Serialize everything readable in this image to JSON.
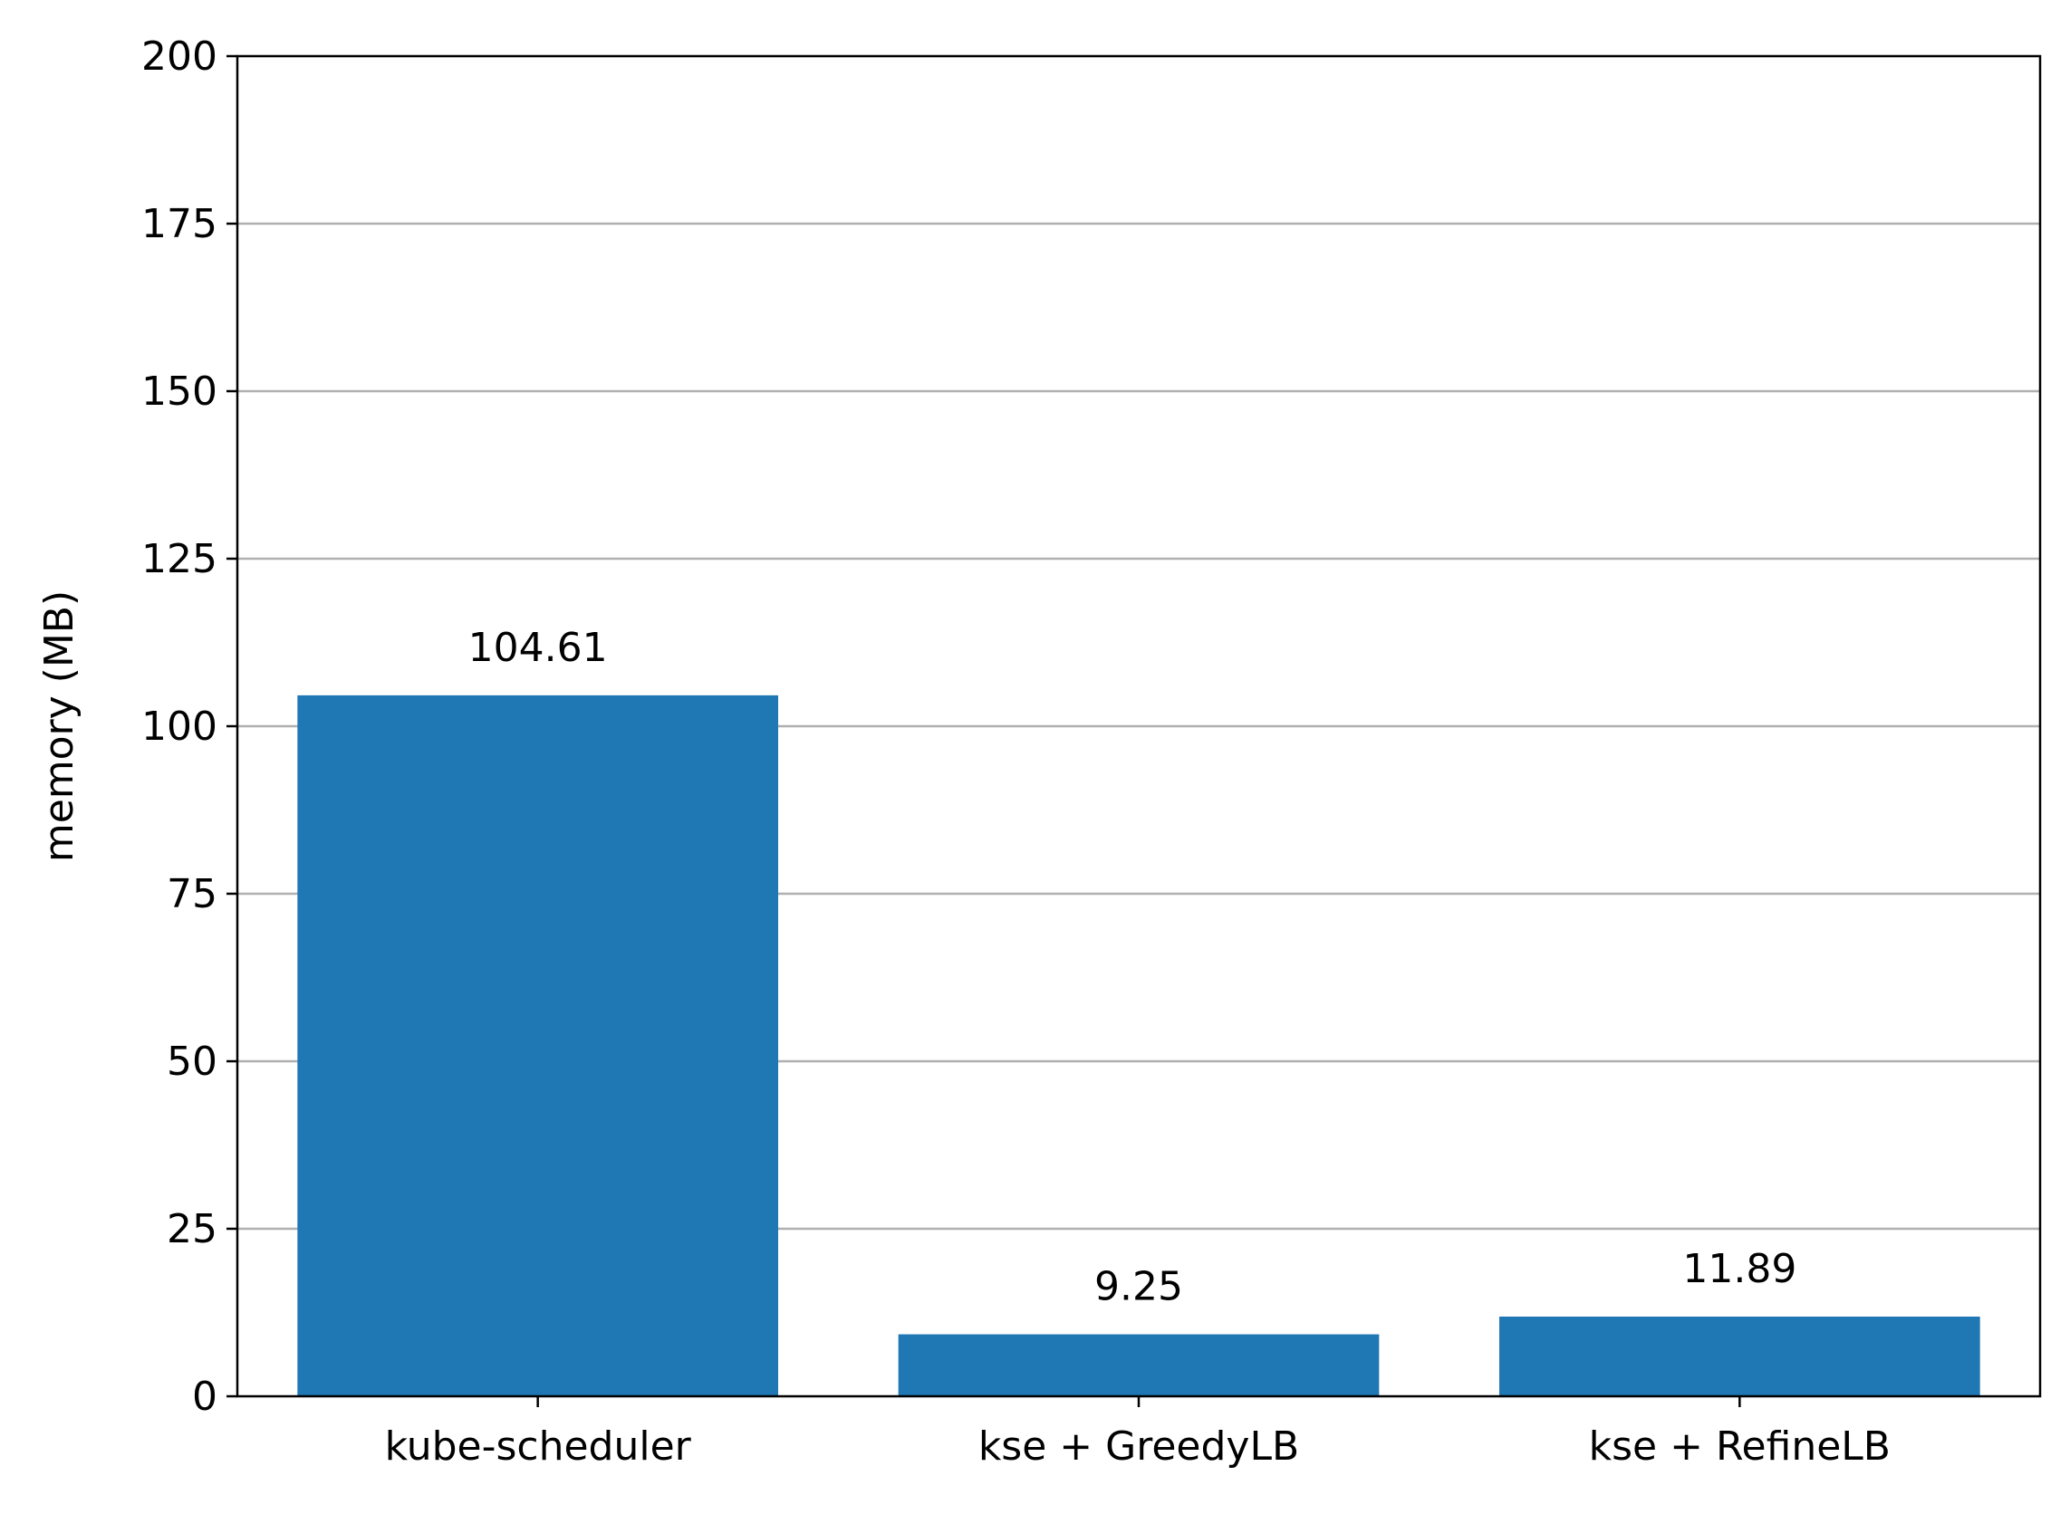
{
  "chart_data": {
    "type": "bar",
    "categories": [
      "kube-scheduler",
      "kse + GreedyLB",
      "kse + RefineLB"
    ],
    "values": [
      104.61,
      9.25,
      11.89
    ],
    "value_labels": [
      "104.61",
      "9.25",
      "11.89"
    ],
    "title": "",
    "xlabel": "",
    "ylabel": "memory (MB)",
    "ylim": [
      0,
      200
    ],
    "yticks": [
      0,
      25,
      50,
      75,
      100,
      125,
      150,
      175,
      200
    ],
    "grid": "y-axis only",
    "legend": "none",
    "bar_color": "#1f77b4",
    "grid_color": "#b0b0b0"
  }
}
